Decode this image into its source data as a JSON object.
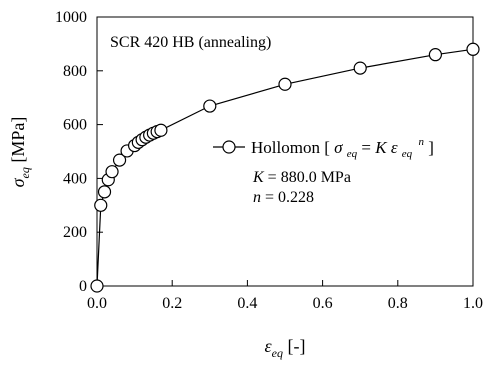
{
  "chart_data": {
    "type": "scatter",
    "annotation": "SCR 420 HB (annealing)",
    "xlabel": "",
    "ylabel": "",
    "xlim": [
      0,
      1.0
    ],
    "ylim": [
      0,
      1000
    ],
    "xticks": [
      "0.0",
      "0.2",
      "0.4",
      "0.6",
      "0.8",
      "1.0"
    ],
    "yticks": [
      "0",
      "200",
      "400",
      "600",
      "800",
      "1000"
    ],
    "xtick_values": [
      0,
      0.2,
      0.4,
      0.6,
      0.8,
      1.0
    ],
    "ytick_values": [
      0,
      200,
      400,
      600,
      800,
      1000
    ],
    "grid": false,
    "legend_position": "center-right",
    "series": [
      {
        "name": "Hollomon",
        "marker": "open-circle",
        "line": "solid",
        "color": "#000000",
        "x": [
          0.0,
          0.01,
          0.02,
          0.03,
          0.04,
          0.06,
          0.08,
          0.1,
          0.11,
          0.12,
          0.13,
          0.14,
          0.15,
          0.16,
          0.17,
          0.3,
          0.5,
          0.7,
          0.9,
          1.0
        ],
        "y": [
          0,
          300,
          350,
          395,
          425,
          468,
          502,
          522,
          534,
          544,
          553,
          561,
          568,
          574,
          579,
          669,
          750,
          810,
          860,
          880
        ]
      }
    ],
    "legend_equation": {
      "name": "Hollomon",
      "open_bracket": "[",
      "close_bracket": "]",
      "sigma": "σ",
      "eq_sub": "eq",
      "equals": " = ",
      "K": "K",
      "epsilon": "ε",
      "n": "n"
    },
    "parameters": [
      {
        "symbol": "K",
        "value": " = 880.0 MPa"
      },
      {
        "symbol": "n",
        "value": " = 0.228"
      }
    ],
    "axis_titles": {
      "x_symbol": "ε",
      "x_sub": "eq",
      "x_unit": " [-]",
      "y_symbol": "σ",
      "y_sub": "eq",
      "y_unit": " [MPa]"
    }
  }
}
